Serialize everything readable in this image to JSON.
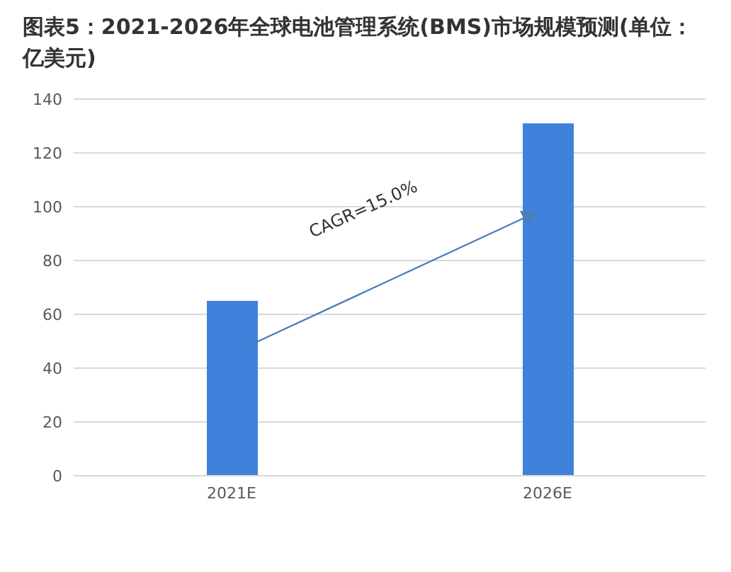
{
  "chart_data": {
    "type": "bar",
    "title": "图表5：2021-2026年全球电池管理系统(BMS)市场规模预测(单位：亿美元)",
    "categories": [
      "2021E",
      "2026E"
    ],
    "values": [
      65,
      131
    ],
    "color": "#3f82dc",
    "ylim": [
      0,
      140
    ],
    "yticks": [
      0,
      20,
      40,
      60,
      80,
      100,
      120,
      140
    ],
    "grid": "y",
    "annotations": [
      "CAGR=15.0%"
    ]
  }
}
